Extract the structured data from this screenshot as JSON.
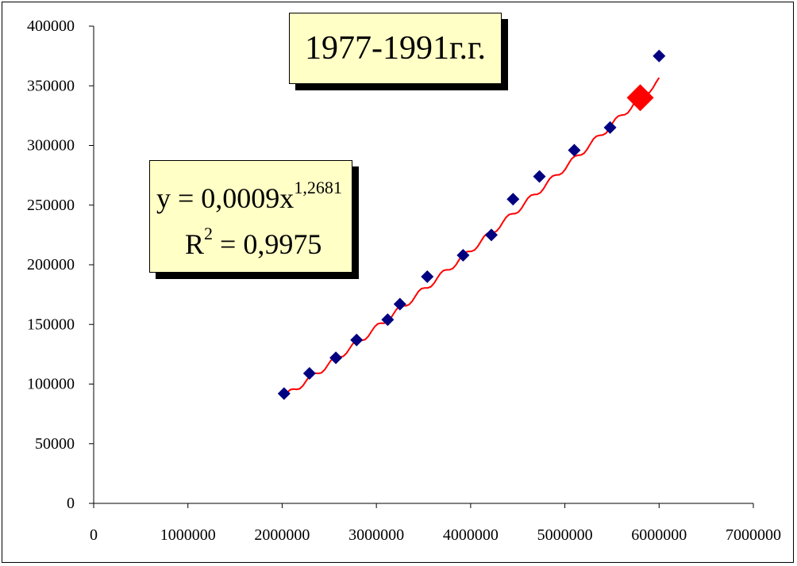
{
  "chart_data": {
    "type": "scatter",
    "title": "1977-1991г.г.",
    "xlabel": "",
    "ylabel": "",
    "xlim": [
      0,
      7000000
    ],
    "ylim": [
      0,
      400000
    ],
    "x_ticks": [
      "0",
      "1000000",
      "2000000",
      "3000000",
      "4000000",
      "5000000",
      "6000000",
      "7000000"
    ],
    "y_ticks": [
      "0",
      "50000",
      "100000",
      "150000",
      "200000",
      "250000",
      "300000",
      "350000",
      "400000"
    ],
    "grid": false,
    "series": [
      {
        "marker": "diamond",
        "color": "#000080",
        "points": [
          [
            2020000,
            92000
          ],
          [
            2290000,
            109000
          ],
          [
            2570000,
            122000
          ],
          [
            2790000,
            137000
          ],
          [
            3120000,
            154000
          ],
          [
            3250000,
            167000
          ],
          [
            3540000,
            190000
          ],
          [
            3920000,
            208000
          ],
          [
            4220000,
            225000
          ],
          [
            4450000,
            255000
          ],
          [
            4730000,
            274000
          ],
          [
            5100000,
            296000
          ],
          [
            5480000,
            315000
          ],
          [
            6000000,
            375000
          ]
        ]
      },
      {
        "marker": "diamond-large",
        "color": "#ff0000",
        "points": [
          [
            5800000,
            340000
          ]
        ]
      }
    ],
    "trendline": {
      "color": "#ff0000",
      "x_range": [
        2020000,
        6000000
      ],
      "equation_prefix": "y = 0,0009x",
      "equation_exponent": "1,2681",
      "r2_prefix": "R",
      "r2_exponent": "2",
      "r2_suffix": " = 0,9975"
    }
  }
}
